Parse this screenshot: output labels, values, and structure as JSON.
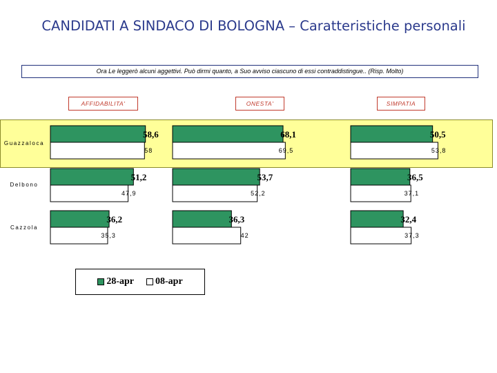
{
  "title": "CANDIDATI A SINDACO DI BOLOGNA – Caratteristiche personali",
  "question": "Ora Le leggerò alcuni aggettivi. Può dirmi quanto, a Suo avviso ciascuno di essi contraddistingue.. (Risp. Molto)",
  "colors": {
    "series_2804": "#2e9460",
    "series_0804": "#ffffff",
    "highlight": "#ffff99",
    "category_border": "#c0392b"
  },
  "chart_data": {
    "type": "bar",
    "orientation": "horizontal",
    "panels": [
      "AFFIDABILITA'",
      "ONESTA'",
      "SIMPATIA"
    ],
    "candidates": [
      "Guazzaloca",
      "Delbono",
      "Cazzola"
    ],
    "highlighted_candidate": "Guazzaloca",
    "series": [
      {
        "name": "28-apr",
        "labels": [
          [
            "58,6",
            "68,1",
            "50,5"
          ],
          [
            "51,2",
            "53,7",
            "36,5"
          ],
          [
            "36,2",
            "36,3",
            "32,4"
          ]
        ],
        "values": [
          [
            58.6,
            68.1,
            50.5
          ],
          [
            51.2,
            53.7,
            36.5
          ],
          [
            36.2,
            36.3,
            32.4
          ]
        ]
      },
      {
        "name": "08-apr",
        "labels": [
          [
            "58",
            "69,5",
            "53,8"
          ],
          [
            "47,9",
            "52,2",
            "37,1"
          ],
          [
            "35,3",
            "42",
            "37,3"
          ]
        ],
        "values": [
          [
            58,
            69.5,
            53.8
          ],
          [
            47.9,
            52.2,
            37.1
          ],
          [
            35.3,
            42,
            37.3
          ]
        ]
      }
    ],
    "legend": "bottom-left"
  }
}
